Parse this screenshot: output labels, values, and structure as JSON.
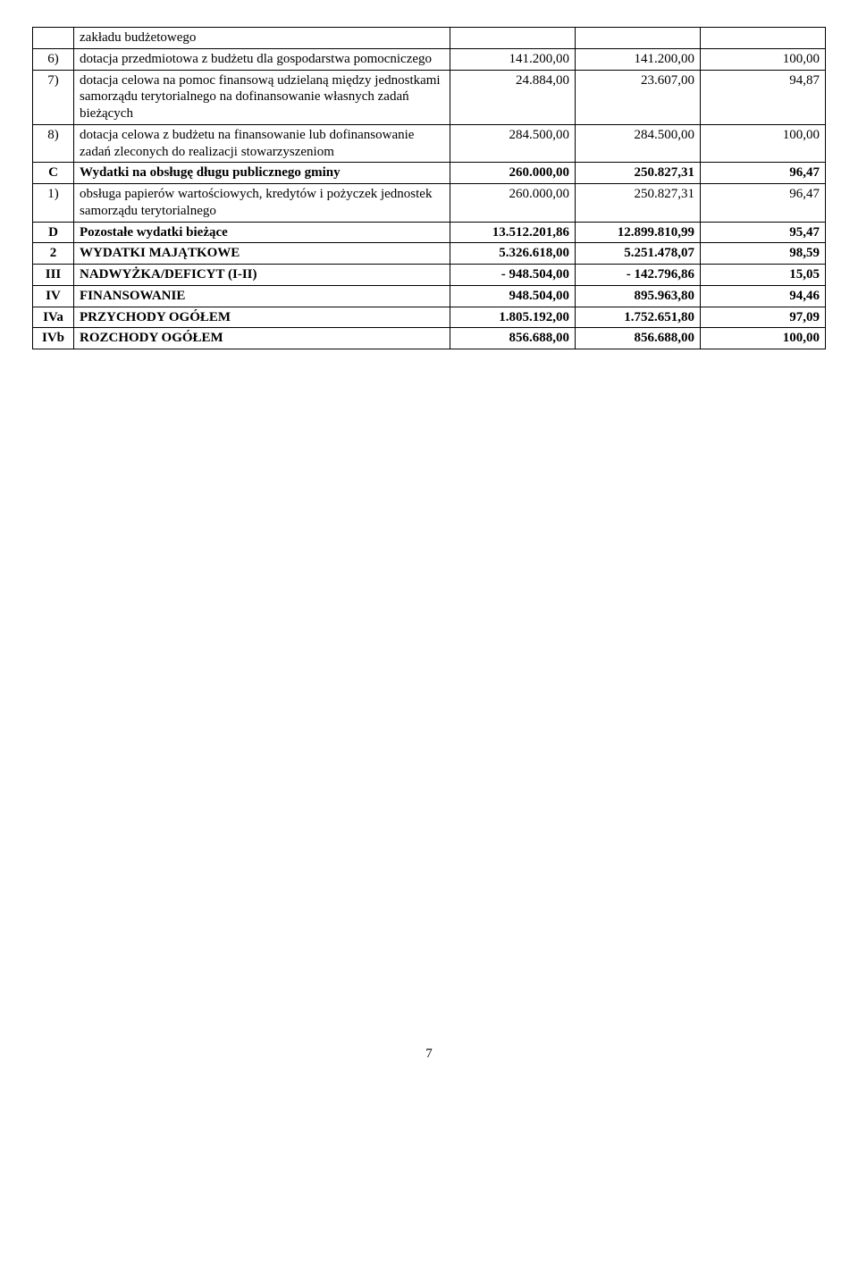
{
  "rows": [
    {
      "idx": "",
      "desc": "zakładu budżetowego",
      "v1": "",
      "v2": "",
      "v3": "",
      "bold": false
    },
    {
      "idx": "6)",
      "desc": "dotacja przedmiotowa z budżetu dla gospodarstwa pomocniczego",
      "v1": "141.200,00",
      "v2": "141.200,00",
      "v3": "100,00",
      "bold": false
    },
    {
      "idx": "7)",
      "desc": "dotacja celowa na pomoc finansową udzielaną między jednostkami samorządu terytorialnego na dofinansowanie własnych zadań bieżących",
      "v1": "24.884,00",
      "v2": "23.607,00",
      "v3": "94,87",
      "bold": false
    },
    {
      "idx": "8)",
      "desc": "dotacja celowa z budżetu na finansowanie lub dofinansowanie zadań zleconych do realizacji stowarzyszeniom",
      "v1": "284.500,00",
      "v2": "284.500,00",
      "v3": "100,00",
      "bold": false
    },
    {
      "idx": "C",
      "desc": "Wydatki na obsługę długu publicznego gminy",
      "v1": "260.000,00",
      "v2": "250.827,31",
      "v3": "96,47",
      "bold": true
    },
    {
      "idx": "1)",
      "desc": "obsługa papierów wartościowych, kredytów i pożyczek jednostek samorządu terytorialnego",
      "v1": "260.000,00",
      "v2": "250.827,31",
      "v3": "96,47",
      "bold": false
    },
    {
      "idx": "D",
      "desc": "Pozostałe wydatki bieżące",
      "v1": "13.512.201,86",
      "v2": "12.899.810,99",
      "v3": "95,47",
      "bold": true
    },
    {
      "idx": "2",
      "desc": "WYDATKI MAJĄTKOWE",
      "v1": "5.326.618,00",
      "v2": "5.251.478,07",
      "v3": "98,59",
      "bold": true
    },
    {
      "idx": "III",
      "desc": "NADWYŻKA/DEFICYT (I-II)",
      "v1": "- 948.504,00",
      "v2": "- 142.796,86",
      "v3": "15,05",
      "bold": true
    },
    {
      "idx": "IV",
      "desc": "FINANSOWANIE",
      "v1": "948.504,00",
      "v2": "895.963,80",
      "v3": "94,46",
      "bold": true
    },
    {
      "idx": "IVa",
      "desc": "PRZYCHODY OGÓŁEM",
      "v1": "1.805.192,00",
      "v2": "1.752.651,80",
      "v3": "97,09",
      "bold": true
    },
    {
      "idx": "IVb",
      "desc": "ROZCHODY OGÓŁEM",
      "v1": "856.688,00",
      "v2": "856.688,00",
      "v3": "100,00",
      "bold": true
    }
  ],
  "page_number": "7"
}
